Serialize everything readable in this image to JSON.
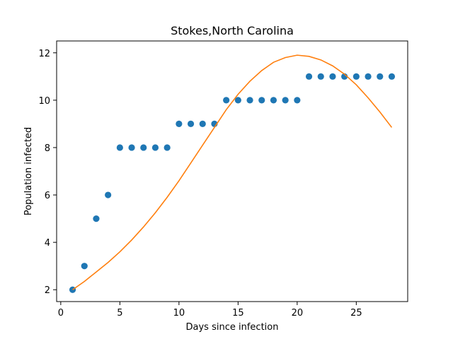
{
  "chart_data": {
    "type": "scatter",
    "title": "Stokes,North Carolina",
    "xlabel": "Days since infection",
    "ylabel": "Population infected",
    "xlim": [
      -0.35,
      29.35
    ],
    "ylim": [
      1.5,
      12.5
    ],
    "xticks": [
      0,
      5,
      10,
      15,
      20,
      25
    ],
    "yticks": [
      2,
      4,
      6,
      8,
      10,
      12
    ],
    "grid": false,
    "series": [
      {
        "kind": "scatter",
        "color": "#1f77b4",
        "x": [
          1,
          2,
          3,
          4,
          5,
          6,
          7,
          8,
          9,
          10,
          11,
          12,
          13,
          14,
          15,
          16,
          17,
          18,
          19,
          20,
          21,
          22,
          23,
          24,
          25,
          26,
          27,
          28
        ],
        "y": [
          2,
          3,
          5,
          6,
          8,
          8,
          8,
          8,
          8,
          9,
          9,
          9,
          9,
          10,
          10,
          10,
          10,
          10,
          10,
          10,
          11,
          11,
          11,
          11,
          11,
          11,
          11,
          11
        ]
      },
      {
        "kind": "line",
        "color": "#ff7f0e",
        "x": [
          1,
          2,
          3,
          4,
          5,
          6,
          7,
          8,
          9,
          10,
          11,
          12,
          13,
          14,
          15,
          16,
          17,
          18,
          19,
          20,
          21,
          22,
          23,
          24,
          25,
          26,
          27,
          28
        ],
        "y": [
          2.0,
          2.35,
          2.75,
          3.15,
          3.6,
          4.1,
          4.65,
          5.25,
          5.9,
          6.6,
          7.35,
          8.1,
          8.85,
          9.6,
          10.25,
          10.8,
          11.25,
          11.6,
          11.8,
          11.9,
          11.85,
          11.7,
          11.45,
          11.1,
          10.65,
          10.1,
          9.5,
          8.85
        ]
      }
    ]
  }
}
